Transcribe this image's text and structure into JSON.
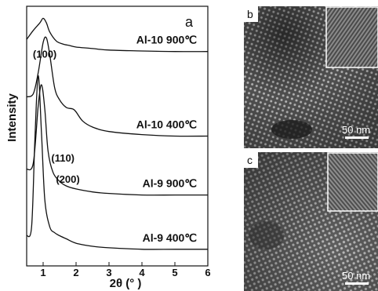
{
  "chart_data": {
    "type": "line",
    "panel_label": "a",
    "xlabel": "2θ (° )",
    "ylabel": "Intensity",
    "xlim": [
      0.5,
      6
    ],
    "xticks": [
      "1",
      "2",
      "3",
      "4",
      "5",
      "6"
    ],
    "xtick_values": [
      1,
      2,
      3,
      4,
      5,
      6
    ],
    "grid": false,
    "series": [
      {
        "name": "Al-10 900℃",
        "x": [
          0.5,
          0.7,
          0.9,
          1.0,
          1.1,
          1.2,
          1.4,
          1.6,
          1.8,
          2.0,
          2.5,
          3.0,
          4.0,
          5.0,
          6.0
        ],
        "y": [
          7.5,
          7.8,
          8.05,
          8.2,
          8.05,
          7.75,
          7.45,
          7.35,
          7.3,
          7.25,
          7.2,
          7.15,
          7.12,
          7.1,
          7.1
        ]
      },
      {
        "name": "Al-10 400℃",
        "x": [
          0.5,
          0.7,
          0.85,
          1.0,
          1.1,
          1.2,
          1.35,
          1.5,
          1.7,
          1.9,
          2.0,
          2.2,
          2.5,
          3.0,
          4.0,
          5.0,
          6.0
        ],
        "y": [
          5.6,
          5.7,
          6.4,
          7.4,
          7.55,
          7.0,
          5.9,
          5.5,
          5.25,
          5.2,
          5.1,
          4.8,
          4.6,
          4.45,
          4.35,
          4.3,
          4.3
        ]
      },
      {
        "name": "Al-9 900℃",
        "x": [
          0.5,
          0.7,
          0.85,
          0.95,
          1.05,
          1.15,
          1.3,
          1.5,
          1.7,
          2.0,
          2.5,
          3.0,
          4.0,
          5.0,
          6.0
        ],
        "y": [
          3.2,
          3.4,
          5.3,
          6.0,
          5.2,
          3.8,
          3.1,
          2.8,
          2.65,
          2.55,
          2.45,
          2.4,
          2.35,
          2.35,
          2.35
        ]
      },
      {
        "name": "Al-9 400℃",
        "x": [
          0.5,
          0.65,
          0.75,
          0.85,
          0.95,
          1.05,
          1.2,
          1.35,
          1.5,
          1.7,
          2.0,
          2.5,
          3.0,
          4.0,
          5.0,
          6.0
        ],
        "y": [
          1.0,
          1.3,
          4.2,
          6.3,
          4.4,
          2.2,
          1.3,
          1.1,
          1.0,
          0.9,
          0.75,
          0.65,
          0.6,
          0.55,
          0.55,
          0.55
        ]
      }
    ],
    "peak_labels": [
      {
        "text": "(100)",
        "x": 1.05,
        "y": 6.9
      },
      {
        "text": "(110)",
        "x": 1.6,
        "y": 3.45
      },
      {
        "text": "(200)",
        "x": 1.75,
        "y": 2.75
      }
    ],
    "y_scale_max": 8.6
  },
  "micrographs": [
    {
      "panel_label": "b",
      "scale_bar": "50 nm"
    },
    {
      "panel_label": "c",
      "scale_bar": "50 nm"
    }
  ]
}
